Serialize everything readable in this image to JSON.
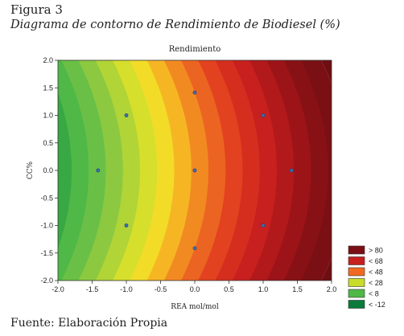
{
  "figure": {
    "label": "Figura 3",
    "caption": "Diagrama de contorno de Rendimiento de Biodiesel (%)",
    "source": "Fuente: Elaboración Propia"
  },
  "chart_data": {
    "type": "contour",
    "title": "Rendimiento",
    "xlabel": "REA mol/mol",
    "ylabel": "CC%",
    "xlim": [
      -2.0,
      2.0
    ],
    "ylim": [
      -2.0,
      2.0
    ],
    "x_ticks": [
      "-2.0",
      "-1.5",
      "-1.0",
      "-0.5",
      "0.0",
      "0.5",
      "1.0",
      "1.5",
      "2.0"
    ],
    "y_ticks": [
      "2.0",
      "1.5",
      "1.0",
      "0.5",
      "0.0",
      "-0.5",
      "-1.0",
      "-1.5",
      "-2.0"
    ],
    "legend_position": "bottom-right",
    "legend": [
      {
        "label": "> 80",
        "color": "#7a1014"
      },
      {
        "label": "< 68",
        "color": "#c8201e"
      },
      {
        "label": "< 48",
        "color": "#f26a22"
      },
      {
        "label": "< 28",
        "color": "#c9dc2a"
      },
      {
        "label": "< 8",
        "color": "#4fb847"
      },
      {
        "label": "< -12",
        "color": "#0b7a3a"
      }
    ],
    "points": [
      {
        "x": -1.0,
        "y": 1.0
      },
      {
        "x": 1.0,
        "y": 1.0
      },
      {
        "x": -1.414,
        "y": 0.0
      },
      {
        "x": 0.0,
        "y": 0.0
      },
      {
        "x": 1.414,
        "y": 0.0
      },
      {
        "x": -1.0,
        "y": -1.0
      },
      {
        "x": 1.0,
        "y": -1.0
      },
      {
        "x": 0.0,
        "y": 1.414
      },
      {
        "x": 0.0,
        "y": -1.414
      }
    ]
  }
}
